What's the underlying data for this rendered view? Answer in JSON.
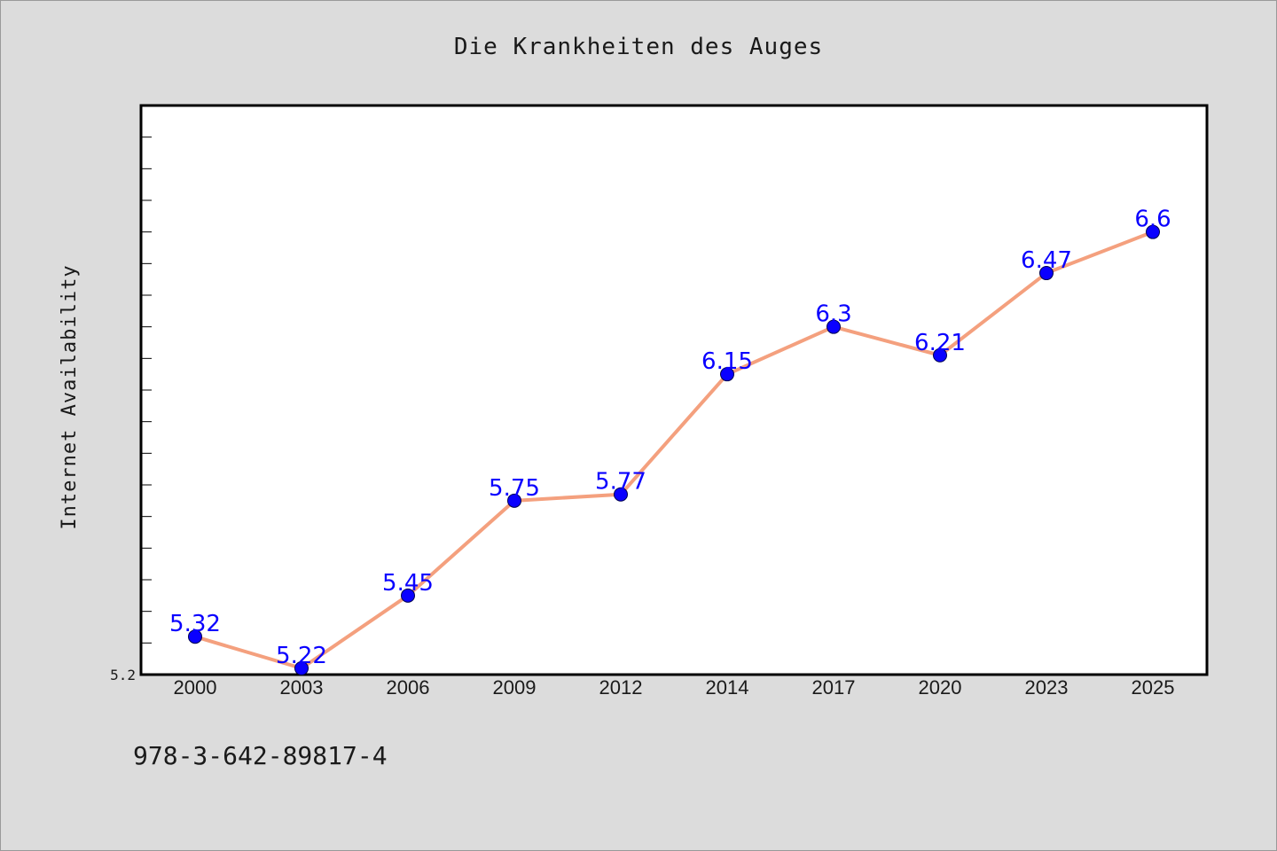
{
  "chart_data": {
    "type": "line",
    "title": "Die Krankheiten des Auges",
    "xlabel": "",
    "ylabel": "Internet Availability",
    "categories": [
      "2000",
      "2003",
      "2006",
      "2009",
      "2012",
      "2014",
      "2017",
      "2020",
      "2023",
      "2025"
    ],
    "series": [
      {
        "values": [
          5.32,
          5.22,
          5.45,
          5.75,
          5.77,
          6.15,
          6.3,
          6.21,
          6.47,
          6.6
        ],
        "data_labels": [
          "5.32",
          "5.22",
          "5.45",
          "5.75",
          "5.77",
          "6.15",
          "6.3",
          "6.21",
          "6.47",
          "6.6"
        ]
      }
    ],
    "ylim": [
      5.2,
      7.0
    ],
    "y_tick_labels": [
      "5.2"
    ],
    "grid": false,
    "line_color": "#f4a07e",
    "marker_color": "#0a00ff",
    "label_color": "#0a00ff",
    "background": "#ffffff",
    "page_background": "#dcdcdc"
  },
  "footer": {
    "isbn": "978-3-642-89817-4"
  }
}
